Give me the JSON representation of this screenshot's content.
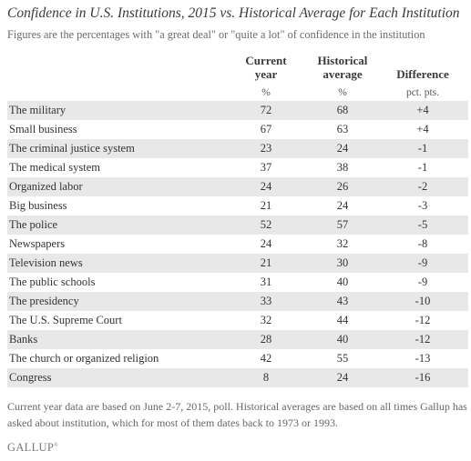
{
  "title": "Confidence in U.S. Institutions, 2015 vs. Historical Average for Each Institution",
  "subtitle": "Figures are the percentages with \"a great deal\" or \"quite a lot\" of confidence in the institution",
  "columns": {
    "current": [
      "Current",
      "year"
    ],
    "historical": [
      "Historical",
      "average"
    ],
    "difference": [
      "Difference"
    ]
  },
  "units": {
    "current": "%",
    "historical": "%",
    "difference": "pct. pts."
  },
  "chart_data": {
    "type": "table",
    "title": "Confidence in U.S. Institutions, 2015 vs. Historical Average for Each Institution",
    "columns": [
      "Current year",
      "Historical average",
      "Difference"
    ],
    "rows": [
      {
        "institution": "The military",
        "current": 72,
        "historical": 68,
        "difference": "+4"
      },
      {
        "institution": "Small business",
        "current": 67,
        "historical": 63,
        "difference": "+4"
      },
      {
        "institution": "The criminal justice system",
        "current": 23,
        "historical": 24,
        "difference": "-1"
      },
      {
        "institution": "The medical system",
        "current": 37,
        "historical": 38,
        "difference": "-1"
      },
      {
        "institution": "Organized labor",
        "current": 24,
        "historical": 26,
        "difference": "-2"
      },
      {
        "institution": "Big business",
        "current": 21,
        "historical": 24,
        "difference": "-3"
      },
      {
        "institution": "The police",
        "current": 52,
        "historical": 57,
        "difference": "-5"
      },
      {
        "institution": "Newspapers",
        "current": 24,
        "historical": 32,
        "difference": "-8"
      },
      {
        "institution": "Television news",
        "current": 21,
        "historical": 30,
        "difference": "-9"
      },
      {
        "institution": "The public schools",
        "current": 31,
        "historical": 40,
        "difference": "-9"
      },
      {
        "institution": "The presidency",
        "current": 33,
        "historical": 43,
        "difference": "-10"
      },
      {
        "institution": "The U.S. Supreme Court",
        "current": 32,
        "historical": 44,
        "difference": "-12"
      },
      {
        "institution": "Banks",
        "current": 28,
        "historical": 40,
        "difference": "-12"
      },
      {
        "institution": "The church or organized religion",
        "current": 42,
        "historical": 55,
        "difference": "-13"
      },
      {
        "institution": "Congress",
        "current": 8,
        "historical": 24,
        "difference": "-16"
      }
    ]
  },
  "footnote": "Current year data are based on June 2-7, 2015, poll. Historical averages are based on all times Gallup has asked about institution, which for most of them dates back to 1973 or 1993.",
  "logo": "GALLUP",
  "colors": {
    "shade": "#e8e8e8",
    "text": "#333333",
    "muted": "#666666"
  }
}
